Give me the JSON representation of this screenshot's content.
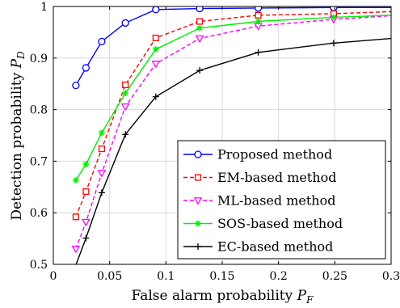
{
  "chart_data": {
    "type": "line",
    "title": "",
    "xlabel": "False alarm probability",
    "xlabel_symbol": "P",
    "xlabel_sub": "F",
    "ylabel": "Detection probability",
    "ylabel_symbol": "P",
    "ylabel_sub": "D",
    "xlim": [
      0,
      0.3
    ],
    "ylim": [
      0.5,
      1.0
    ],
    "xticks": [
      0,
      0.05,
      0.1,
      0.15,
      0.2,
      0.25,
      0.3
    ],
    "yticks": [
      0.5,
      0.6,
      0.7,
      0.8,
      0.9,
      1.0
    ],
    "xtick_labels": [
      "0",
      "0.05",
      "0.1",
      "0.15",
      "0.2",
      "0.25",
      "0.3"
    ],
    "ytick_labels": [
      "0.5",
      "0.6",
      "0.7",
      "0.8",
      "0.9",
      "1"
    ],
    "grid": true,
    "legend_position": "bottom-right",
    "series": [
      {
        "name": "Proposed method",
        "color": "#0000ff",
        "marker": "circle",
        "dash": "solid",
        "x": [
          0.02,
          0.029,
          0.043,
          0.064,
          0.091,
          0.13,
          0.182,
          0.249,
          0.3
        ],
        "y": [
          0.847,
          0.881,
          0.932,
          0.968,
          0.994,
          0.996,
          0.997,
          0.998,
          0.998
        ]
      },
      {
        "name": "EM-based method",
        "color": "#ff0000",
        "marker": "square",
        "dash": "dashed",
        "x": [
          0.02,
          0.029,
          0.043,
          0.064,
          0.091,
          0.13,
          0.182,
          0.249,
          0.3
        ],
        "y": [
          0.592,
          0.641,
          0.724,
          0.848,
          0.939,
          0.971,
          0.983,
          0.986,
          0.99
        ]
      },
      {
        "name": "ML-based method",
        "color": "#ff00ff",
        "marker": "triangle",
        "dash": "dashed",
        "x": [
          0.02,
          0.029,
          0.043,
          0.064,
          0.091,
          0.13,
          0.182,
          0.249,
          0.3
        ],
        "y": [
          0.53,
          0.582,
          0.677,
          0.806,
          0.889,
          0.938,
          0.962,
          0.975,
          0.982
        ]
      },
      {
        "name": "SOS-based method",
        "color": "#00ee00",
        "marker": "star",
        "dash": "solid",
        "x": [
          0.02,
          0.029,
          0.043,
          0.064,
          0.091,
          0.13,
          0.182,
          0.249,
          0.3
        ],
        "y": [
          0.663,
          0.694,
          0.755,
          0.832,
          0.917,
          0.958,
          0.971,
          0.979,
          0.983
        ]
      },
      {
        "name": "EC-based method",
        "color": "#000000",
        "marker": "plus",
        "dash": "solid",
        "x": [
          0.016,
          0.029,
          0.043,
          0.064,
          0.091,
          0.13,
          0.182,
          0.249,
          0.3
        ],
        "y": [
          0.475,
          0.551,
          0.639,
          0.752,
          0.825,
          0.876,
          0.911,
          0.929,
          0.938
        ]
      }
    ]
  }
}
